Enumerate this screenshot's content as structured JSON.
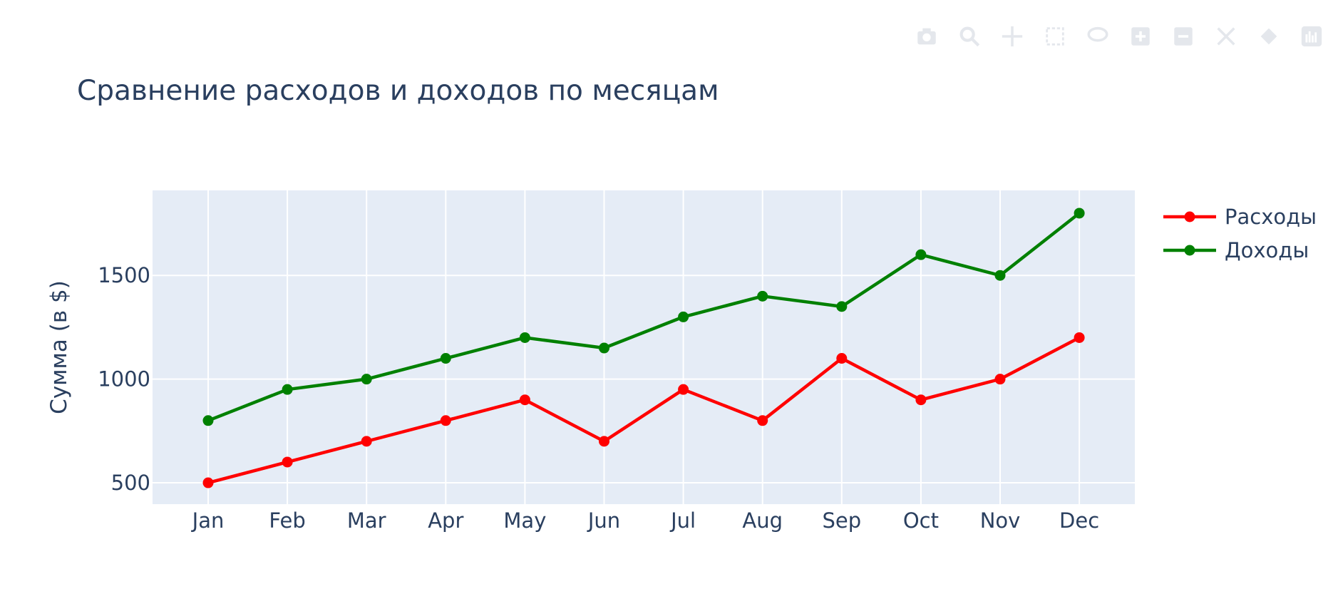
{
  "chart_data": {
    "type": "line",
    "title": "Сравнение расходов и доходов по месяцам",
    "xlabel": "",
    "ylabel": "Сумма (в $)",
    "categories": [
      "Jan",
      "Feb",
      "Mar",
      "Apr",
      "May",
      "Jun",
      "Jul",
      "Aug",
      "Sep",
      "Oct",
      "Nov",
      "Dec"
    ],
    "series": [
      {
        "name": "Расходы",
        "color": "#ff0000",
        "values": [
          500,
          600,
          700,
          800,
          900,
          700,
          950,
          800,
          1100,
          900,
          1000,
          1200
        ]
      },
      {
        "name": "Доходы",
        "color": "#008000",
        "values": [
          800,
          950,
          1000,
          1100,
          1200,
          1150,
          1300,
          1400,
          1350,
          1600,
          1500,
          1800
        ]
      }
    ],
    "ylim": [
      397,
      1910
    ],
    "yticks": [
      500,
      1000,
      1500
    ],
    "grid": true,
    "legend_position": "top-right",
    "plot_bgcolor": "#e5ecf6"
  },
  "modebar": {
    "icons": [
      "camera-icon",
      "zoom-icon",
      "pan-icon",
      "box-select-icon",
      "lasso-icon",
      "zoom-in-icon",
      "zoom-out-icon",
      "autoscale-icon",
      "reset-axes-icon",
      "plotly-logo-icon"
    ]
  }
}
